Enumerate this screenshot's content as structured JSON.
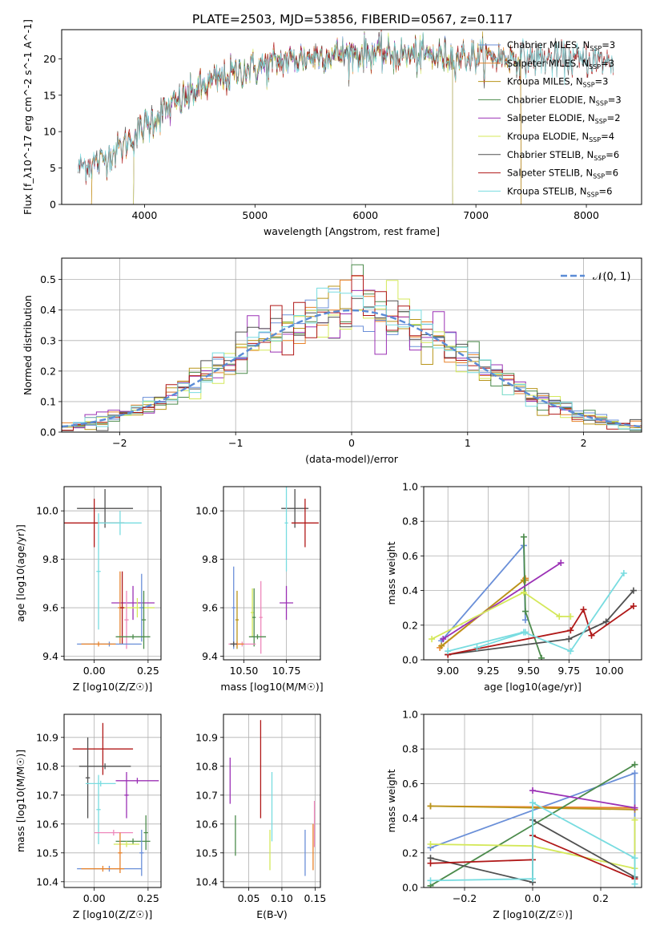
{
  "title": "PLATE=2503, MJD=53856, FIBERID=0567, z=0.117",
  "colors": {
    "chabrier_miles": "#6a8fd8",
    "salpeter_miles": "#e8822a",
    "kroupa_miles": "#b8951a",
    "chabrier_elodie": "#4c8b4c",
    "salpeter_elodie": "#9b30b5",
    "kroupa_elodie": "#d4e85a",
    "chabrier_stelib": "#505050",
    "salpeter_stelib": "#b01818",
    "kroupa_stelib": "#78dce0",
    "extra_pink": "#ee88bb",
    "normal": "#5b8bd6"
  },
  "legend": [
    {
      "label": "Chabrier MILES, N",
      "sub": "SSP",
      "suffix": "=3",
      "color_key": "chabrier_miles"
    },
    {
      "label": "Salpeter MILES, N",
      "sub": "SSP",
      "suffix": "=3",
      "color_key": "salpeter_miles"
    },
    {
      "label": "Kroupa MILES, N",
      "sub": "SSP",
      "suffix": "=3",
      "color_key": "kroupa_miles"
    },
    {
      "label": "Chabrier ELODIE, N",
      "sub": "SSP",
      "suffix": "=3",
      "color_key": "chabrier_elodie"
    },
    {
      "label": "Salpeter ELODIE, N",
      "sub": "SSP",
      "suffix": "=2",
      "color_key": "salpeter_elodie"
    },
    {
      "label": "Kroupa ELODIE, N",
      "sub": "SSP",
      "suffix": "=4",
      "color_key": "kroupa_elodie"
    },
    {
      "label": "Chabrier STELIB, N",
      "sub": "SSP",
      "suffix": "=6",
      "color_key": "chabrier_stelib"
    },
    {
      "label": "Salpeter STELIB, N",
      "sub": "SSP",
      "suffix": "=6",
      "color_key": "salpeter_stelib"
    },
    {
      "label": "Kroupa STELIB, N",
      "sub": "SSP",
      "suffix": "=6",
      "color_key": "kroupa_stelib"
    }
  ],
  "chart_data": [
    {
      "id": "spectrum",
      "type": "line",
      "xlabel": "wavelength [Angstrom, rest frame]",
      "ylabel": "Flux [f_λ10^-17 erg cm^-2 s^-1 A^-1]",
      "xlim": [
        3250,
        8500
      ],
      "ylim": [
        0,
        24
      ],
      "xticks": [
        4000,
        5000,
        6000,
        7000,
        8000
      ],
      "yticks": [
        0,
        5,
        10,
        15,
        20
      ],
      "grid": false,
      "legend_position": "top-right",
      "continuum": [
        [
          3400,
          5.2
        ],
        [
          3600,
          6
        ],
        [
          3800,
          8
        ],
        [
          3950,
          10
        ],
        [
          4100,
          12
        ],
        [
          4300,
          14
        ],
        [
          4500,
          16
        ],
        [
          4800,
          18
        ],
        [
          5200,
          19.5
        ],
        [
          5600,
          20.5
        ],
        [
          6000,
          20.8
        ],
        [
          6400,
          20.5
        ],
        [
          6800,
          20.3
        ],
        [
          7200,
          20.2
        ],
        [
          7600,
          20
        ],
        [
          8000,
          19.8
        ],
        [
          8250,
          19.6
        ]
      ],
      "series_ranges": [
        {
          "color_key": "chabrier_miles",
          "x0": 3400,
          "x1": 7410
        },
        {
          "color_key": "salpeter_miles",
          "x0": 3520,
          "x1": 7410
        },
        {
          "color_key": "kroupa_miles",
          "x0": 3520,
          "x1": 7410
        },
        {
          "color_key": "chabrier_elodie",
          "x0": 3900,
          "x1": 6790
        },
        {
          "color_key": "salpeter_elodie",
          "x0": 3900,
          "x1": 6790
        },
        {
          "color_key": "kroupa_elodie",
          "x0": 3900,
          "x1": 6790
        },
        {
          "color_key": "chabrier_stelib",
          "x0": 3400,
          "x1": 8250
        },
        {
          "color_key": "salpeter_stelib",
          "x0": 3400,
          "x1": 8250
        },
        {
          "color_key": "kroupa_stelib",
          "x0": 3400,
          "x1": 8250
        }
      ]
    },
    {
      "id": "residuals",
      "type": "histogram",
      "xlabel": "(data-model)/error",
      "ylabel": "Normed distribution",
      "xlim": [
        -2.5,
        2.5
      ],
      "ylim": [
        0,
        0.57
      ],
      "xticks": [
        -2,
        -1,
        0,
        1,
        2
      ],
      "yticks": [
        0.0,
        0.1,
        0.2,
        0.3,
        0.4,
        0.5
      ],
      "grid": true,
      "legend_position": "top-right",
      "normal_label": "𝒩(0, 1)",
      "bin_edges_range": [
        -2.5,
        2.5
      ],
      "n_bins": 50
    },
    {
      "id": "age_vs_Z",
      "type": "errorbar",
      "xlabel": "Z [log10(Z/Z☉)]",
      "ylabel": "age [log10(age/yr)]",
      "xlim": [
        -0.14,
        0.31
      ],
      "ylim": [
        9.385,
        10.1
      ],
      "xticks": [
        0.0,
        0.25
      ],
      "yticks": [
        9.4,
        9.6,
        9.8,
        10.0
      ],
      "grid": true,
      "points": [
        {
          "x": 0.05,
          "y": 10.01,
          "xerr": 0.13,
          "yerr": 0.08,
          "color_key": "chabrier_stelib"
        },
        {
          "x": 0.0,
          "y": 9.95,
          "xerr": 0.14,
          "yerr": 0.1,
          "color_key": "salpeter_stelib"
        },
        {
          "x": 0.12,
          "y": 9.95,
          "xerr": 0.1,
          "yerr": 0.05,
          "color_key": "kroupa_stelib"
        },
        {
          "x": 0.02,
          "y": 9.75,
          "xerr": 0.01,
          "yerr": 0.24,
          "color_key": "kroupa_stelib"
        },
        {
          "x": 0.18,
          "y": 9.62,
          "xerr": 0.1,
          "yerr": 0.07,
          "color_key": "salpeter_elodie"
        },
        {
          "x": 0.2,
          "y": 9.6,
          "xerr": 0.08,
          "yerr": 0.04,
          "color_key": "kroupa_elodie"
        },
        {
          "x": 0.12,
          "y": 9.6,
          "xerr": 0.01,
          "yerr": 0.15,
          "color_key": "salpeter_miles"
        },
        {
          "x": 0.13,
          "y": 9.6,
          "xerr": 0.01,
          "yerr": 0.15,
          "color_key": "salpeter_stelib"
        },
        {
          "x": 0.15,
          "y": 9.55,
          "xerr": 0.01,
          "yerr": 0.12,
          "color_key": "extra_pink"
        },
        {
          "x": 0.22,
          "y": 9.6,
          "xerr": 0.01,
          "yerr": 0.14,
          "color_key": "chabrier_miles"
        },
        {
          "x": 0.18,
          "y": 9.48,
          "xerr": 0.08,
          "yerr": 0.01,
          "color_key": "chabrier_elodie"
        },
        {
          "x": 0.23,
          "y": 9.55,
          "xerr": 0.01,
          "yerr": 0.12,
          "color_key": "chabrier_elodie"
        },
        {
          "x": 0.07,
          "y": 9.45,
          "xerr": 0.15,
          "yerr": 0.01,
          "color_key": "chabrier_miles"
        },
        {
          "x": 0.02,
          "y": 9.45,
          "xerr": 0.08,
          "yerr": 0.01,
          "color_key": "salpeter_miles"
        }
      ]
    },
    {
      "id": "age_vs_mass",
      "type": "errorbar",
      "xlabel": "mass [log10(M/M☉)]",
      "ylabel": "",
      "xlim": [
        10.38,
        10.95
      ],
      "ylim": [
        9.385,
        10.1
      ],
      "xticks": [
        10.5,
        10.75
      ],
      "yticks": [
        9.4,
        9.6,
        9.8,
        10.0
      ],
      "grid": true,
      "points": [
        {
          "x": 10.8,
          "y": 10.01,
          "xerr": 0.08,
          "yerr": 0.08,
          "color_key": "chabrier_stelib"
        },
        {
          "x": 10.86,
          "y": 9.95,
          "xerr": 0.08,
          "yerr": 0.1,
          "color_key": "salpeter_stelib"
        },
        {
          "x": 10.75,
          "y": 9.95,
          "xerr": 0.01,
          "yerr": 0.2,
          "color_key": "kroupa_stelib"
        },
        {
          "x": 10.75,
          "y": 9.62,
          "xerr": 0.04,
          "yerr": 0.07,
          "color_key": "salpeter_elodie"
        },
        {
          "x": 10.44,
          "y": 9.6,
          "xerr": 0.01,
          "yerr": 0.17,
          "color_key": "chabrier_miles"
        },
        {
          "x": 10.55,
          "y": 9.58,
          "xerr": 0.01,
          "yerr": 0.1,
          "color_key": "kroupa_elodie"
        },
        {
          "x": 10.56,
          "y": 9.56,
          "xerr": 0.01,
          "yerr": 0.12,
          "color_key": "chabrier_elodie"
        },
        {
          "x": 10.6,
          "y": 9.56,
          "xerr": 0.01,
          "yerr": 0.15,
          "color_key": "extra_pink"
        },
        {
          "x": 10.46,
          "y": 9.55,
          "xerr": 0.01,
          "yerr": 0.12,
          "color_key": "kroupa_miles"
        },
        {
          "x": 10.58,
          "y": 9.48,
          "xerr": 0.05,
          "yerr": 0.01,
          "color_key": "chabrier_elodie"
        },
        {
          "x": 10.49,
          "y": 9.45,
          "xerr": 0.08,
          "yerr": 0.01,
          "color_key": "extra_pink"
        },
        {
          "x": 10.46,
          "y": 9.45,
          "xerr": 0.04,
          "yerr": 0.01,
          "color_key": "salpeter_miles"
        },
        {
          "x": 10.44,
          "y": 9.45,
          "xerr": 0.02,
          "yerr": 0.01,
          "color_key": "chabrier_stelib"
        }
      ]
    },
    {
      "id": "weight_vs_age",
      "type": "line",
      "xlabel": "age [log10(age/yr)]",
      "ylabel": "mass weight",
      "xlim": [
        8.85,
        10.2
      ],
      "ylim": [
        0,
        1
      ],
      "xticks": [
        9.0,
        9.25,
        9.5,
        9.75,
        10.0
      ],
      "yticks": [
        0.0,
        0.2,
        0.4,
        0.6,
        0.8,
        1.0
      ],
      "grid": true,
      "series": [
        {
          "color_key": "chabrier_miles",
          "x": [
            8.96,
            9.47,
            9.48
          ],
          "y": [
            0.11,
            0.66,
            0.23
          ]
        },
        {
          "color_key": "salpeter_miles",
          "x": [
            8.95,
            9.47,
            9.48
          ],
          "y": [
            0.07,
            0.46,
            0.47
          ]
        },
        {
          "color_key": "kroupa_miles",
          "x": [
            8.96,
            9.47,
            9.48
          ],
          "y": [
            0.08,
            0.46,
            0.46
          ]
        },
        {
          "color_key": "chabrier_elodie",
          "x": [
            9.47,
            9.48,
            9.58
          ],
          "y": [
            0.71,
            0.28,
            0.01
          ]
        },
        {
          "color_key": "salpeter_elodie",
          "x": [
            8.97,
            9.7
          ],
          "y": [
            0.12,
            0.56
          ]
        },
        {
          "color_key": "kroupa_elodie",
          "x": [
            8.9,
            9.47,
            9.69,
            9.76
          ],
          "y": [
            0.12,
            0.39,
            0.25,
            0.25
          ]
        },
        {
          "color_key": "chabrier_stelib",
          "x": [
            9.0,
            9.75,
            9.98,
            10.15
          ],
          "y": [
            0.03,
            0.12,
            0.22,
            0.4
          ]
        },
        {
          "color_key": "salpeter_stelib",
          "x": [
            9.0,
            9.76,
            9.84,
            9.89,
            10.15
          ],
          "y": [
            0.03,
            0.17,
            0.29,
            0.14,
            0.31
          ]
        },
        {
          "color_key": "kroupa_stelib",
          "x": [
            9.0,
            9.47,
            9.76,
            10.09
          ],
          "y": [
            0.05,
            0.16,
            0.05,
            0.5
          ]
        },
        {
          "color_key": "kroupa_stelib",
          "x": [
            9.18,
            9.48
          ],
          "y": [
            0.07,
            0.16
          ]
        }
      ]
    },
    {
      "id": "mass_vs_Z",
      "type": "errorbar",
      "xlabel": "Z [log10(Z/Z☉)]",
      "ylabel": "mass [log10(M/M☉)]",
      "xlim": [
        -0.14,
        0.31
      ],
      "ylim": [
        10.38,
        10.98
      ],
      "xticks": [
        0.0,
        0.25
      ],
      "yticks": [
        10.4,
        10.5,
        10.6,
        10.7,
        10.8,
        10.9
      ],
      "grid": true,
      "points": [
        {
          "x": 0.04,
          "y": 10.86,
          "xerr": 0.14,
          "yerr": 0.09,
          "color_key": "salpeter_stelib"
        },
        {
          "x": 0.05,
          "y": 10.8,
          "xerr": 0.12,
          "yerr": 0.01,
          "color_key": "chabrier_stelib"
        },
        {
          "x": -0.03,
          "y": 10.76,
          "xerr": 0.01,
          "yerr": 0.14,
          "color_key": "chabrier_stelib"
        },
        {
          "x": 0.2,
          "y": 10.75,
          "xerr": 0.1,
          "yerr": 0.01,
          "color_key": "salpeter_elodie"
        },
        {
          "x": 0.15,
          "y": 10.7,
          "xerr": 0.01,
          "yerr": 0.08,
          "color_key": "salpeter_elodie"
        },
        {
          "x": 0.03,
          "y": 10.74,
          "xerr": 0.07,
          "yerr": 0.01,
          "color_key": "kroupa_stelib"
        },
        {
          "x": 0.02,
          "y": 10.65,
          "xerr": 0.01,
          "yerr": 0.12,
          "color_key": "kroupa_stelib"
        },
        {
          "x": 0.09,
          "y": 10.57,
          "xerr": 0.09,
          "yerr": 0.01,
          "color_key": "extra_pink"
        },
        {
          "x": 0.24,
          "y": 10.57,
          "xerr": 0.01,
          "yerr": 0.06,
          "color_key": "chabrier_elodie"
        },
        {
          "x": 0.18,
          "y": 10.54,
          "xerr": 0.08,
          "yerr": 0.01,
          "color_key": "chabrier_elodie"
        },
        {
          "x": 0.15,
          "y": 10.53,
          "xerr": 0.06,
          "yerr": 0.01,
          "color_key": "kroupa_elodie"
        },
        {
          "x": 0.12,
          "y": 10.5,
          "xerr": 0.01,
          "yerr": 0.07,
          "color_key": "salpeter_miles"
        },
        {
          "x": 0.22,
          "y": 10.5,
          "xerr": 0.01,
          "yerr": 0.08,
          "color_key": "chabrier_miles"
        },
        {
          "x": 0.07,
          "y": 10.445,
          "xerr": 0.15,
          "yerr": 0.01,
          "color_key": "chabrier_miles"
        },
        {
          "x": 0.04,
          "y": 10.445,
          "xerr": 0.1,
          "yerr": 0.01,
          "color_key": "salpeter_miles"
        }
      ]
    },
    {
      "id": "mass_vs_ebv",
      "type": "errorbar",
      "xlabel": "E(B-V)",
      "ylabel": "",
      "xlim": [
        0.012,
        0.158
      ],
      "ylim": [
        10.38,
        10.98
      ],
      "xticks": [
        0.05,
        0.1,
        0.15
      ],
      "yticks": [
        10.4,
        10.5,
        10.6,
        10.7,
        10.8,
        10.9
      ],
      "grid": true,
      "points": [
        {
          "x": 0.022,
          "y": 10.75,
          "xerr": 0.0,
          "yerr": 0.08,
          "color_key": "salpeter_elodie"
        },
        {
          "x": 0.03,
          "y": 10.56,
          "xerr": 0.0,
          "yerr": 0.07,
          "color_key": "chabrier_elodie"
        },
        {
          "x": 0.068,
          "y": 10.79,
          "xerr": 0.0,
          "yerr": 0.17,
          "color_key": "salpeter_stelib"
        },
        {
          "x": 0.082,
          "y": 10.51,
          "xerr": 0.0,
          "yerr": 0.07,
          "color_key": "kroupa_elodie"
        },
        {
          "x": 0.085,
          "y": 10.66,
          "xerr": 0.0,
          "yerr": 0.12,
          "color_key": "kroupa_stelib"
        },
        {
          "x": 0.135,
          "y": 10.5,
          "xerr": 0.0,
          "yerr": 0.08,
          "color_key": "chabrier_miles"
        },
        {
          "x": 0.147,
          "y": 10.52,
          "xerr": 0.0,
          "yerr": 0.08,
          "color_key": "salpeter_miles"
        },
        {
          "x": 0.149,
          "y": 10.6,
          "xerr": 0.0,
          "yerr": 0.08,
          "color_key": "extra_pink"
        }
      ]
    },
    {
      "id": "weight_vs_Z",
      "type": "line",
      "xlabel": "Z [log10(Z/Z☉)]",
      "ylabel": "mass weight",
      "xlim": [
        -0.32,
        0.32
      ],
      "ylim": [
        0,
        1
      ],
      "xticks": [
        -0.2,
        0.0,
        0.2
      ],
      "yticks": [
        0.0,
        0.2,
        0.4,
        0.6,
        0.8,
        1.0
      ],
      "grid": true,
      "series": [
        {
          "color_key": "chabrier_miles",
          "x": [
            -0.3,
            0.3,
            0.3
          ],
          "y": [
            0.23,
            0.66,
            0.11
          ]
        },
        {
          "color_key": "salpeter_miles",
          "x": [
            -0.3,
            0.3
          ],
          "y": [
            0.47,
            0.46
          ]
        },
        {
          "color_key": "kroupa_miles",
          "x": [
            -0.3,
            0.3
          ],
          "y": [
            0.47,
            0.45
          ]
        },
        {
          "color_key": "chabrier_elodie",
          "x": [
            -0.3,
            0.3
          ],
          "y": [
            0.01,
            0.71
          ]
        },
        {
          "color_key": "salpeter_elodie",
          "x": [
            0.0,
            0.3
          ],
          "y": [
            0.56,
            0.46
          ]
        },
        {
          "color_key": "kroupa_elodie",
          "x": [
            -0.3,
            0.0,
            0.3,
            0.3
          ],
          "y": [
            0.25,
            0.24,
            0.11,
            0.39
          ]
        },
        {
          "color_key": "chabrier_stelib",
          "x": [
            -0.3,
            0.0,
            0.0,
            0.3
          ],
          "y": [
            0.17,
            0.03,
            0.39,
            0.06
          ]
        },
        {
          "color_key": "salpeter_stelib",
          "x": [
            -0.3,
            0.0,
            0.0,
            0.3
          ],
          "y": [
            0.14,
            0.16,
            0.3,
            0.05
          ]
        },
        {
          "color_key": "kroupa_stelib",
          "x": [
            -0.3,
            0.0,
            0.0,
            0.3,
            0.3
          ],
          "y": [
            0.04,
            0.05,
            0.49,
            0.17,
            0.02
          ]
        }
      ]
    }
  ]
}
